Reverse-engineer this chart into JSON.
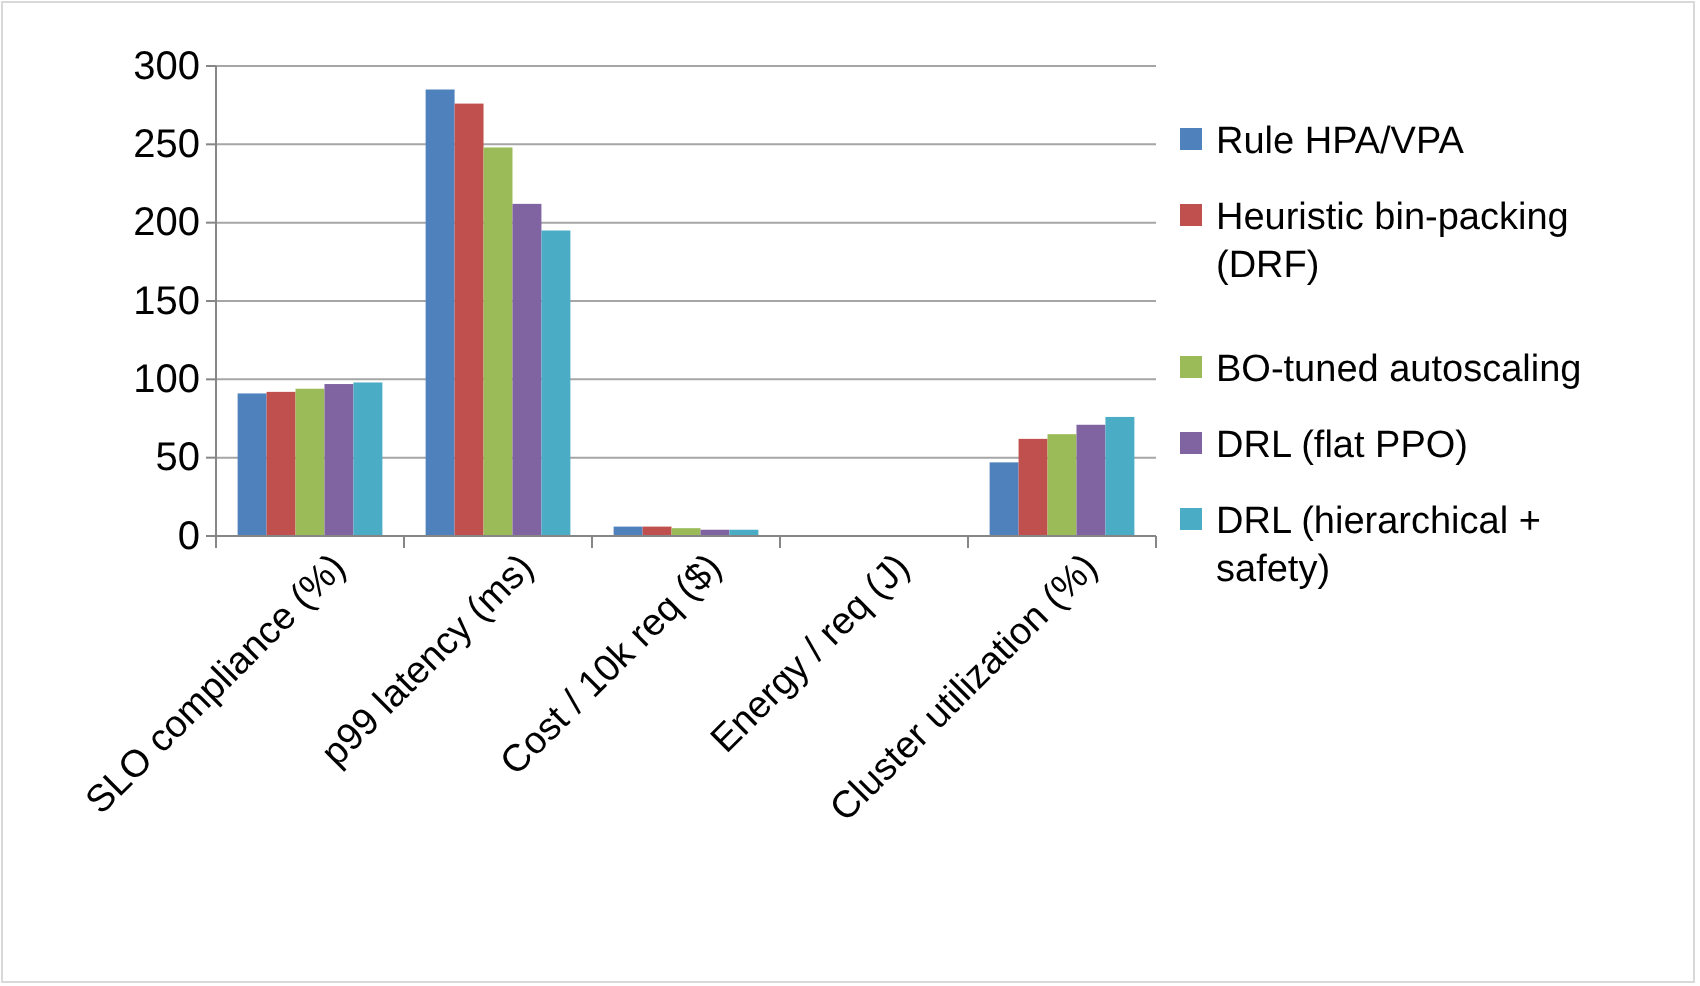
{
  "chart_data": {
    "type": "bar",
    "categories": [
      "SLO compliance (%)",
      "p99 latency (ms)",
      "Cost / 10k req ($)",
      "Energy / req (J)",
      "Cluster utilization (%)"
    ],
    "series": [
      {
        "name": "Rule HPA/VPA",
        "color": "#4f81bd",
        "values": [
          91,
          285,
          6,
          0,
          47
        ]
      },
      {
        "name": "Heuristic bin-packing (DRF)",
        "color": "#c0504d",
        "values": [
          92,
          276,
          6,
          0,
          62
        ]
      },
      {
        "name": "BO-tuned autoscaling",
        "color": "#9bbb59",
        "values": [
          94,
          248,
          5,
          0,
          65
        ]
      },
      {
        "name": "DRL (flat PPO)",
        "color": "#8064a2",
        "values": [
          97,
          212,
          4,
          0,
          71
        ]
      },
      {
        "name": "DRL (hierarchical + safety)",
        "color": "#4bacc6",
        "values": [
          98,
          195,
          4,
          0,
          76
        ]
      }
    ],
    "ylim": [
      0,
      300
    ],
    "yticks": [
      0,
      50,
      100,
      150,
      200,
      250,
      300
    ],
    "grid": "y",
    "legend": "right"
  }
}
